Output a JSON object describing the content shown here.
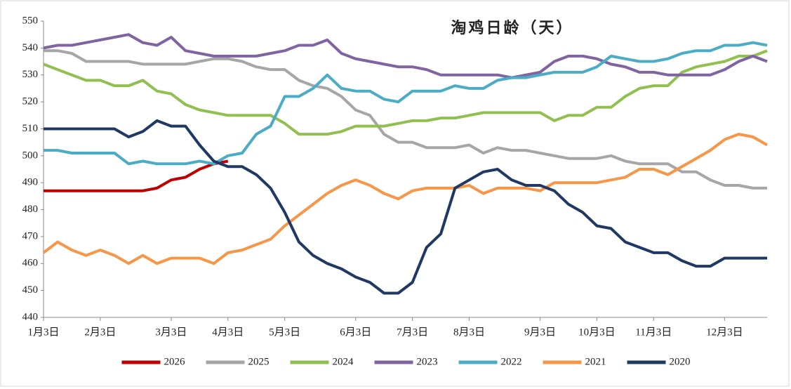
{
  "chart_data": {
    "type": "line",
    "title": "淘鸡日龄（天）",
    "categories": [
      "1月3日",
      null,
      null,
      null,
      "2月3日",
      null,
      null,
      null,
      null,
      "3月3日",
      null,
      null,
      null,
      "4月3日",
      null,
      null,
      null,
      "5月3日",
      null,
      null,
      null,
      null,
      "6月3日",
      null,
      null,
      null,
      "7月3日",
      null,
      null,
      null,
      "8月3日",
      null,
      null,
      null,
      null,
      "9月3日",
      null,
      null,
      null,
      "10月3日",
      null,
      null,
      null,
      "11月3日",
      null,
      null,
      null,
      null,
      "12月3日",
      null,
      null,
      null
    ],
    "ylim": [
      440,
      550
    ],
    "yticks": [
      440,
      450,
      460,
      470,
      480,
      490,
      500,
      510,
      520,
      530,
      540,
      550
    ],
    "grid": false,
    "legend": "bottom",
    "series": [
      {
        "name": "2026",
        "color": "#c00000",
        "values": [
          487,
          487,
          487,
          487,
          487,
          487,
          487,
          487,
          488,
          491,
          492,
          495,
          497,
          498,
          null,
          null,
          null,
          null,
          null,
          null,
          null,
          null,
          null,
          null,
          null,
          null,
          null,
          null,
          null,
          null,
          null,
          null,
          null,
          null,
          null,
          null,
          null,
          null,
          null,
          null,
          null,
          null,
          null,
          null,
          null,
          null,
          null,
          null,
          null,
          null,
          null,
          null
        ]
      },
      {
        "name": "2025",
        "color": "#a6a6a6",
        "values": [
          539,
          539,
          538,
          535,
          535,
          535,
          535,
          534,
          534,
          534,
          534,
          535,
          536,
          536,
          535,
          533,
          532,
          532,
          528,
          526,
          525,
          522,
          517,
          515,
          508,
          505,
          505,
          503,
          503,
          503,
          504,
          501,
          503,
          502,
          502,
          501,
          500,
          499,
          499,
          499,
          500,
          498,
          497,
          497,
          497,
          494,
          494,
          491,
          489,
          489,
          488,
          488
        ]
      },
      {
        "name": "2024",
        "color": "#92c050",
        "values": [
          534,
          532,
          530,
          528,
          528,
          526,
          526,
          528,
          524,
          523,
          519,
          517,
          516,
          515,
          515,
          515,
          515,
          512,
          508,
          508,
          508,
          509,
          511,
          511,
          511,
          512,
          513,
          513,
          514,
          514,
          515,
          516,
          516,
          516,
          516,
          516,
          513,
          515,
          515,
          518,
          518,
          522,
          525,
          526,
          526,
          531,
          533,
          534,
          535,
          537,
          537,
          539
        ]
      },
      {
        "name": "2023",
        "color": "#8064a2",
        "values": [
          540,
          541,
          541,
          542,
          543,
          544,
          545,
          542,
          541,
          544,
          539,
          538,
          537,
          537,
          537,
          537,
          538,
          539,
          541,
          541,
          543,
          538,
          536,
          535,
          534,
          533,
          533,
          532,
          530,
          530,
          530,
          530,
          530,
          529,
          530,
          531,
          535,
          537,
          537,
          536,
          534,
          533,
          531,
          531,
          530,
          530,
          530,
          530,
          532,
          535,
          537,
          535
        ]
      },
      {
        "name": "2022",
        "color": "#4bacc6",
        "values": [
          502,
          502,
          501,
          501,
          501,
          501,
          497,
          498,
          497,
          497,
          497,
          498,
          497,
          500,
          501,
          508,
          511,
          522,
          522,
          525,
          530,
          525,
          524,
          524,
          521,
          520,
          524,
          524,
          524,
          526,
          525,
          525,
          528,
          529,
          529,
          530,
          531,
          531,
          531,
          533,
          537,
          536,
          535,
          535,
          536,
          538,
          539,
          539,
          541,
          541,
          542,
          541
        ]
      },
      {
        "name": "2021",
        "color": "#f79646",
        "values": [
          464,
          468,
          465,
          463,
          465,
          463,
          460,
          463,
          460,
          462,
          462,
          462,
          460,
          464,
          465,
          467,
          469,
          474,
          478,
          482,
          486,
          489,
          491,
          489,
          486,
          484,
          487,
          488,
          488,
          488,
          489,
          486,
          488,
          488,
          488,
          487,
          490,
          490,
          490,
          490,
          491,
          492,
          495,
          495,
          493,
          496,
          499,
          502,
          506,
          508,
          507,
          504
        ]
      },
      {
        "name": "2020",
        "color": "#203864",
        "values": [
          510,
          510,
          510,
          510,
          510,
          510,
          507,
          509,
          513,
          511,
          511,
          504,
          498,
          496,
          496,
          493,
          488,
          479,
          468,
          463,
          460,
          458,
          455,
          453,
          449,
          449,
          453,
          466,
          471,
          488,
          491,
          494,
          495,
          491,
          489,
          489,
          487,
          482,
          479,
          474,
          473,
          468,
          466,
          464,
          464,
          461,
          459,
          459,
          462,
          462,
          462,
          462
        ]
      }
    ]
  }
}
